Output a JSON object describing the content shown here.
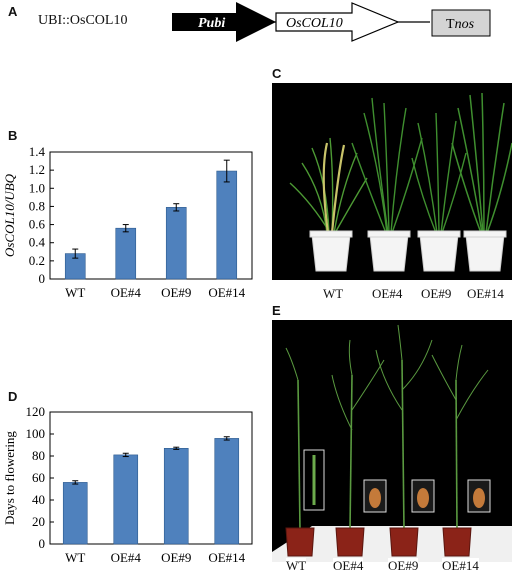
{
  "panels": {
    "a": {
      "letter": "A",
      "construct": "UBI::OsCOL10",
      "promoter": "Pubi",
      "gene": "OsCOL10",
      "terminator_prefix": "T",
      "terminator_suffix": "nos"
    },
    "b": {
      "letter": "B"
    },
    "c": {
      "letter": "C",
      "plant_labels": [
        "WT",
        "OE#4",
        "OE#9",
        "OE#14"
      ]
    },
    "d": {
      "letter": "D"
    },
    "e": {
      "letter": "E",
      "plant_labels": [
        "WT",
        "OE#4",
        "OE#9",
        "OE#14"
      ]
    }
  },
  "colors": {
    "bar": "#4f81bd",
    "bar_edge": "#2d5a8e",
    "photo_bg": "#000000",
    "pot_c": "#f4f4f4",
    "pot_e": "#8b2318",
    "leaf": "#3f8f2f",
    "panicle": "#c9c46a"
  },
  "chart_data": [
    {
      "type": "bar",
      "id": "B",
      "categories": [
        "WT",
        "OE#4",
        "OE#9",
        "OE#14"
      ],
      "values": [
        0.28,
        0.56,
        0.79,
        1.19
      ],
      "errors": [
        0.05,
        0.04,
        0.04,
        0.12
      ],
      "ylabel": "OsCOL10/UBQ",
      "ylim": [
        0,
        1.4
      ],
      "yticks": [
        "0",
        "0.2",
        "0.4",
        "0.6",
        "0.8",
        "1.0",
        "1.2",
        "1.4"
      ],
      "grid": false
    },
    {
      "type": "bar",
      "id": "D",
      "categories": [
        "WT",
        "OE#4",
        "OE#9",
        "OE#14"
      ],
      "values": [
        56,
        81,
        87,
        96
      ],
      "errors": [
        1.5,
        1.5,
        1,
        1.5
      ],
      "ylabel": "Days to flowering",
      "ylim": [
        0,
        120
      ],
      "yticks": [
        "0",
        "20",
        "40",
        "60",
        "80",
        "100",
        "120"
      ],
      "grid": false
    }
  ]
}
